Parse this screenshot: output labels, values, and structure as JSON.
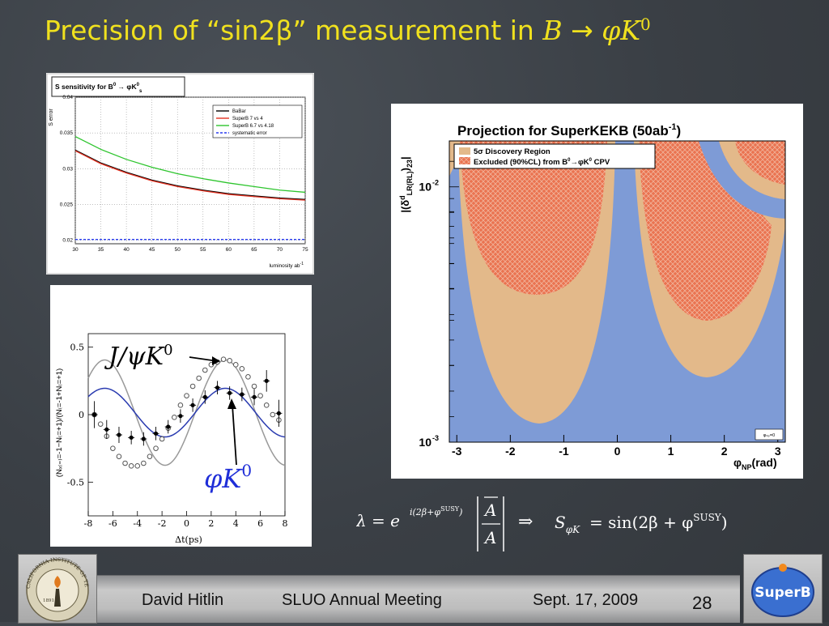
{
  "slide": {
    "title_prefix": "Precision of “sin2β” measurement in",
    "title_B": "B",
    "title_arrow": "→",
    "title_phi": "φK",
    "title_sup": "0"
  },
  "footer": {
    "author": "David Hitlin",
    "meeting": "SLUO Annual Meeting",
    "date": "Sept. 17, 2009",
    "page": "28"
  },
  "logos": {
    "caltech": "CALIFORNIA INSTITUTE OF TECHNOLOGY",
    "caltech_year": "1891",
    "superb": "SuperB"
  },
  "formula": {
    "lambda": "λ = e",
    "exponent": "i(2β+φ",
    "exponent_sup": "SUSY",
    "exponent_close": ")",
    "ratio_num": "A",
    "ratio_den": "A",
    "implies": "⇒",
    "s_lhs": "S",
    "s_lhs_sub": "φK",
    "s_rhs": "= sin(2β + φ",
    "s_rhs_sup": "SUSY",
    "s_rhs_close": ")"
  },
  "colors": {
    "title": "#f0e11e",
    "babar": "#000000",
    "superb_7v4": "#e53322",
    "superb_6p7": "#2ec52e",
    "systematic": "#2a3df0",
    "discovery": "#e3b98a",
    "excluded": "#ea7350",
    "np_bg": "#7e9bd6",
    "jpsi_curve": "#999999",
    "phik_curve": "#2a3bb0"
  },
  "chart_data": [
    {
      "type": "line",
      "title": "S sensitivity for B⁰ → φK⁰s",
      "title_main": "S sensitivity for B",
      "title_sup": "0",
      "title_arrow": " → φK",
      "title_sub": "s",
      "xlabel": "luminosity ab",
      "xlabel_sup": "-1",
      "ylabel": "S error",
      "xlim": [
        30,
        75
      ],
      "ylim": [
        0.0195,
        0.04
      ],
      "xticks": [
        "30",
        "35",
        "40",
        "45",
        "50",
        "55",
        "60",
        "65",
        "70",
        "75"
      ],
      "yticks": [
        {
          "v": 0.02,
          "label": "0.02"
        },
        {
          "v": 0.025,
          "label": "0.025"
        },
        {
          "v": 0.03,
          "label": "0.03"
        },
        {
          "v": 0.035,
          "label": "0.035"
        },
        {
          "v": 0.04,
          "label": "0.04"
        }
      ],
      "grid": true,
      "legend_position": "top-right",
      "series": [
        {
          "name": "BaBar",
          "color": "#000000",
          "dash": "none",
          "x": [
            30,
            35,
            40,
            45,
            50,
            55,
            60,
            65,
            70,
            75
          ],
          "y": [
            0.0326,
            0.0308,
            0.0295,
            0.0284,
            0.0276,
            0.027,
            0.0265,
            0.0262,
            0.0259,
            0.0257
          ]
        },
        {
          "name": "SuperB 7 vs 4",
          "color": "#e53322",
          "dash": "none",
          "x": [
            30,
            35,
            40,
            45,
            50,
            55,
            60,
            65,
            70,
            75
          ],
          "y": [
            0.0325,
            0.0307,
            0.0294,
            0.0283,
            0.0275,
            0.0269,
            0.0264,
            0.0261,
            0.0258,
            0.0256
          ]
        },
        {
          "name": "SuperB 6.7 vs 4.18",
          "color": "#2ec52e",
          "dash": "none",
          "x": [
            30,
            35,
            40,
            45,
            50,
            55,
            60,
            65,
            70,
            75
          ],
          "y": [
            0.0345,
            0.0327,
            0.0313,
            0.0302,
            0.0293,
            0.0286,
            0.028,
            0.0275,
            0.027,
            0.0267
          ]
        },
        {
          "name": "systematic error",
          "color": "#2a3df0",
          "dash": "3,2",
          "x": [
            30,
            75
          ],
          "y": [
            0.0201,
            0.0201
          ]
        }
      ]
    },
    {
      "type": "scatter",
      "xlabel": "Δt(ps)",
      "ylabel": "(N_{qξ=-1} − N_{qξ=+1})/(N_{qξ=-1} + N_{qξ=+1})",
      "ylabel_text": "(Nₓ₍₌₎=-1−N₍=+1)/(N₍=-1+N₍=+1)",
      "xlim": [
        -8,
        8
      ],
      "ylim": [
        -0.75,
        0.6
      ],
      "xticks": [
        "-8",
        "-6",
        "-4",
        "-2",
        "0",
        "2",
        "4",
        "6",
        "8"
      ],
      "yticks": [
        {
          "v": 0.5,
          "label": "0.5"
        },
        {
          "v": 0,
          "label": "0"
        },
        {
          "v": -0.5,
          "label": "-0.5"
        }
      ],
      "annotations": [
        {
          "text": "J/ψK",
          "sup": "0",
          "points_to": "jpsi"
        },
        {
          "text": "φK",
          "sup": "0",
          "points_to": "phik"
        }
      ],
      "series": [
        {
          "name": "J/ψK⁰",
          "marker": "open-circle",
          "x": [
            -7.5,
            -7,
            -6.5,
            -6,
            -5.5,
            -5,
            -4.5,
            -4,
            -3.5,
            -3,
            -2.5,
            -2,
            -1.5,
            -1,
            -0.5,
            0,
            0.5,
            1,
            1.5,
            2,
            2.5,
            3,
            3.5,
            4,
            4.5,
            5,
            5.5,
            6,
            6.5,
            7,
            7.5
          ],
          "y": [
            0.0,
            -0.07,
            -0.16,
            -0.25,
            -0.31,
            -0.36,
            -0.38,
            -0.38,
            -0.36,
            -0.31,
            -0.25,
            -0.18,
            -0.1,
            -0.02,
            0.07,
            0.14,
            0.21,
            0.27,
            0.33,
            0.37,
            0.39,
            0.41,
            0.4,
            0.37,
            0.34,
            0.28,
            0.21,
            0.14,
            0.07,
            0.0,
            -0.04
          ]
        },
        {
          "name": "φK⁰",
          "marker": "filled-circle",
          "x": [
            -7.5,
            -6.5,
            -5.5,
            -4.5,
            -3.5,
            -2.5,
            -1.5,
            -0.5,
            0.5,
            1.5,
            2.5,
            3.5,
            4.5,
            5.5,
            6.5,
            7.5
          ],
          "y": [
            0.0,
            -0.11,
            -0.15,
            -0.17,
            -0.18,
            -0.14,
            -0.09,
            -0.01,
            0.07,
            0.13,
            0.2,
            0.16,
            0.15,
            0.13,
            0.25,
            0.01
          ],
          "err": [
            0.1,
            0.07,
            0.06,
            0.05,
            0.05,
            0.05,
            0.05,
            0.05,
            0.05,
            0.05,
            0.05,
            0.05,
            0.05,
            0.06,
            0.08,
            0.1
          ]
        }
      ],
      "fits": [
        {
          "name": "J/ψK⁰ fit",
          "color": "#999999",
          "amp": 0.39,
          "offset": 0.015
        },
        {
          "name": "φK⁰ fit",
          "color": "#2a3bb0",
          "amp": 0.18,
          "offset": 0.015
        }
      ]
    },
    {
      "type": "heatmap",
      "title": "Projection for SuperKEKB (50ab",
      "title_sup": "-1",
      "title_close": ")",
      "ylabel": "|(δᵈLR(RL))₂₃|",
      "ylabel_main": "|(δ",
      "ylabel_sup": "d",
      "ylabel_sub": "LR(RL)",
      "ylabel_close": ")",
      "ylabel_sub2": "23",
      "ylabel_end": "|",
      "xlabel_main": "φ",
      "xlabel_sub": "NP",
      "xlabel_units": "(rad)",
      "xlim": [
        -3.14,
        3.14
      ],
      "ylim_log10": [
        -3,
        -1.82
      ],
      "xticks": [
        "-3",
        "-2",
        "-1",
        "0",
        "1",
        "2",
        "3"
      ],
      "yticks": [
        {
          "v": -2,
          "label": "10",
          "sup": "-2"
        },
        {
          "v": -3,
          "label": "10",
          "sup": "-3"
        }
      ],
      "legend_position": "top-left",
      "legend": [
        {
          "label": "5σ Discovery Region",
          "color": "#e3b98a"
        },
        {
          "label_pre": "Excluded (90%CL) from B",
          "label_sup": "0",
          "label_post": "→φK",
          "label_sup2": "0",
          "label_end": " CPV",
          "color": "#ea7350",
          "hatch": true
        }
      ],
      "corner_note": "φₙₚ=0"
    }
  ]
}
